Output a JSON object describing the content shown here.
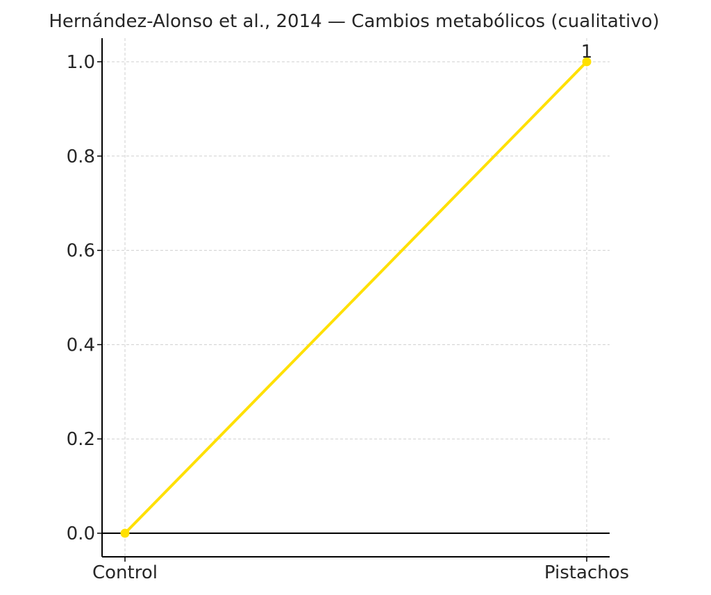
{
  "chart_data": {
    "type": "line",
    "title": "Hernández-Alonso et al., 2014 — Cambios metabólicos (cualitativo)",
    "categories": [
      "Control",
      "Pistachos"
    ],
    "series": [
      {
        "values": [
          0,
          1
        ],
        "color": "#FFE000"
      }
    ],
    "data_labels": [
      "",
      "1"
    ],
    "y_ticks": [
      0.0,
      0.2,
      0.4,
      0.6,
      0.8,
      1.0
    ],
    "y_tick_labels": [
      "0.0",
      "0.2",
      "0.4",
      "0.6",
      "0.8",
      "1.0"
    ],
    "ylim": [
      -0.05,
      1.05
    ],
    "grid": true,
    "zero_line": true,
    "xlabel": "",
    "ylabel": ""
  }
}
